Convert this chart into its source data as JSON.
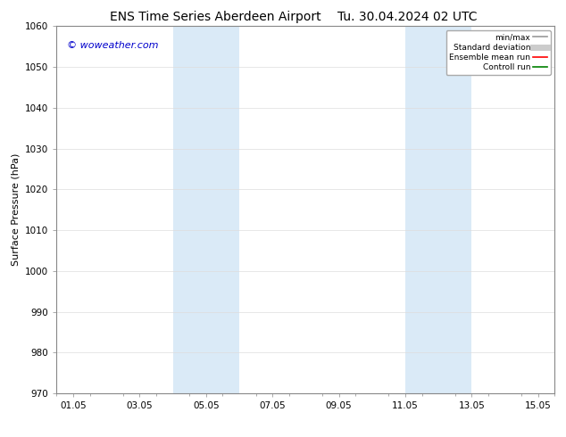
{
  "title_left": "ENS Time Series Aberdeen Airport",
  "title_right": "Tu. 30.04.2024 02 UTC",
  "ylabel": "Surface Pressure (hPa)",
  "ylim": [
    970,
    1060
  ],
  "yticks": [
    970,
    980,
    990,
    1000,
    1010,
    1020,
    1030,
    1040,
    1050,
    1060
  ],
  "xlim": [
    0,
    15
  ],
  "xtick_labels": [
    "01.05",
    "03.05",
    "05.05",
    "07.05",
    "09.05",
    "11.05",
    "13.05",
    "15.05"
  ],
  "xtick_positions_days": [
    0.5,
    2.5,
    4.5,
    6.5,
    8.5,
    10.5,
    12.5,
    14.5
  ],
  "shaded_bands": [
    {
      "start_day": 3.5,
      "end_day": 5.5
    },
    {
      "start_day": 10.5,
      "end_day": 12.5
    }
  ],
  "shaded_color": "#daeaf7",
  "watermark_text": "© woweather.com",
  "watermark_color": "#0000cc",
  "legend_entries": [
    {
      "label": "min/max",
      "color": "#999999",
      "lw": 1.2
    },
    {
      "label": "Standard deviation",
      "color": "#cccccc",
      "lw": 5
    },
    {
      "label": "Ensemble mean run",
      "color": "#ff0000",
      "lw": 1.2
    },
    {
      "label": "Controll run",
      "color": "#008000",
      "lw": 1.2
    }
  ],
  "bg_color": "#ffffff",
  "spine_color": "#888888",
  "title_fontsize": 10,
  "tick_fontsize": 7.5,
  "label_fontsize": 8,
  "watermark_fontsize": 8
}
